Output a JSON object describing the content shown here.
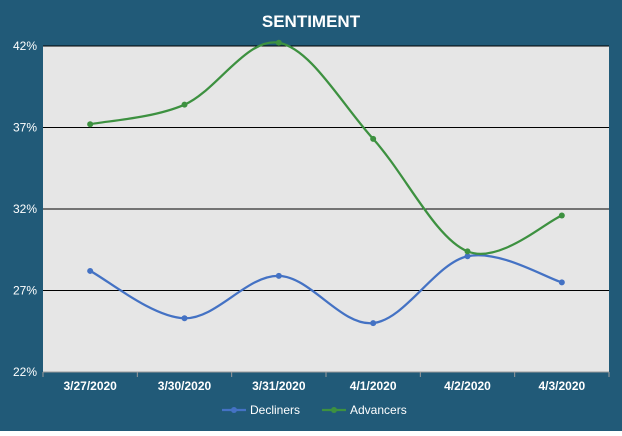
{
  "chart_data": {
    "type": "line",
    "title": "SENTIMENT",
    "categories": [
      "3/27/2020",
      "3/30/2020",
      "3/31/2020",
      "4/1/2020",
      "4/2/2020",
      "4/3/2020"
    ],
    "series": [
      {
        "name": "Decliners",
        "values": [
          28.2,
          25.3,
          27.9,
          25.0,
          29.1,
          27.5
        ],
        "color": "#4472c4"
      },
      {
        "name": "Advancers",
        "values": [
          37.2,
          38.4,
          42.2,
          36.3,
          29.4,
          31.6
        ],
        "color": "#3d9140"
      }
    ],
    "ylim": [
      22,
      42
    ],
    "yticks": [
      22,
      27,
      32,
      37,
      42
    ],
    "ytick_labels": [
      "22%",
      "27%",
      "32%",
      "37%",
      "42%"
    ],
    "grid": true,
    "smooth": true,
    "legend_position": "bottom",
    "colors": {
      "frame": "#215a78",
      "plot_background": "#e6e6e6",
      "text": "#ffffff",
      "gridline": "#000000"
    }
  }
}
